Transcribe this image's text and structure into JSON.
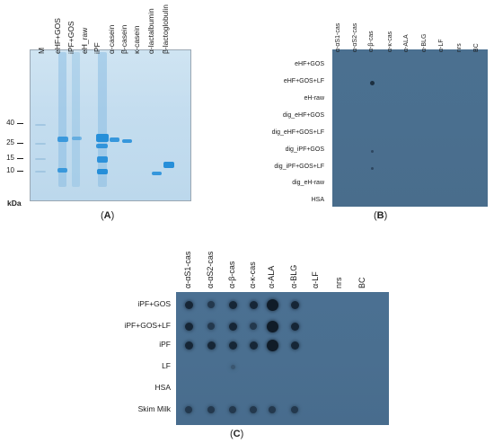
{
  "panel_A": {
    "caption": "(A)",
    "caption_letter": "A",
    "lanes": [
      "M",
      "eHF+GOS",
      "iPF+GOS",
      "eH_raw",
      "iPF",
      "α-casein",
      "β-casein",
      "κ-casein",
      "α-lactalbumin",
      "β-lactoglobulin"
    ],
    "mw_markers": [
      "40",
      "25",
      "15",
      "10"
    ],
    "mw_unit": "kDa",
    "band_color": "#1f8bd8"
  },
  "panel_B": {
    "caption": "(B)",
    "caption_letter": "B",
    "columns": [
      "α-αS1-cas",
      "α-αS2-cas",
      "α-β-cas",
      "α-κ-cas",
      "α-ALA",
      "α-BLG",
      "α-LF",
      "nrs",
      "BC"
    ],
    "rows": [
      "eHF+GOS",
      "eHF+GOS+LF",
      "eH-raw",
      "dig_eHF+GOS",
      "dig_eHF+GOS+LF",
      "dig_iPF+GOS",
      "dig_iPF+GOS+LF",
      "dig_eH-raw",
      "HSA"
    ],
    "dots": [
      [
        0,
        0,
        0,
        0,
        0,
        0,
        0,
        0,
        0
      ],
      [
        0,
        0,
        2,
        0,
        0,
        0,
        0,
        0,
        0
      ],
      [
        0,
        0,
        0,
        0,
        0,
        0,
        0,
        0,
        0
      ],
      [
        0,
        0,
        0,
        0,
        0,
        0,
        0,
        0,
        0
      ],
      [
        0,
        0,
        0,
        0,
        0,
        0,
        0,
        0,
        0
      ],
      [
        0,
        0,
        1,
        0,
        0,
        0,
        0,
        0,
        0
      ],
      [
        0,
        0,
        1,
        0,
        0,
        0,
        0,
        0,
        0
      ],
      [
        0,
        0,
        0,
        0,
        0,
        0,
        0,
        0,
        0
      ],
      [
        0,
        0,
        0,
        0,
        0,
        0,
        0,
        0,
        0
      ]
    ],
    "blot_color": "#4a6f8f"
  },
  "panel_C": {
    "caption": "(C)",
    "caption_letter": "C",
    "columns": [
      "α-αS1-cas",
      "α-αS2-cas",
      "α-β-cas",
      "α-κ-cas",
      "α-ALA",
      "α-BLG",
      "α-LF",
      "nrs",
      "BC"
    ],
    "rows": [
      "iPF+GOS",
      "iPF+GOS+LF",
      "iPF",
      "LF",
      "HSA",
      "Skim Milk"
    ],
    "dots": [
      [
        3,
        2,
        3,
        3,
        4,
        3,
        0,
        0,
        0
      ],
      [
        3,
        2,
        3,
        2,
        4,
        3,
        0,
        0,
        0
      ],
      [
        3,
        3,
        3,
        3,
        4,
        3,
        0,
        0,
        0
      ],
      [
        0,
        0,
        1,
        0,
        0,
        0,
        0,
        0,
        0
      ],
      [
        0,
        0,
        0,
        0,
        0,
        0,
        0,
        0,
        0
      ],
      [
        2,
        2,
        2,
        2,
        2,
        2,
        0,
        0,
        0
      ]
    ],
    "blot_color": "#4a6f90"
  }
}
